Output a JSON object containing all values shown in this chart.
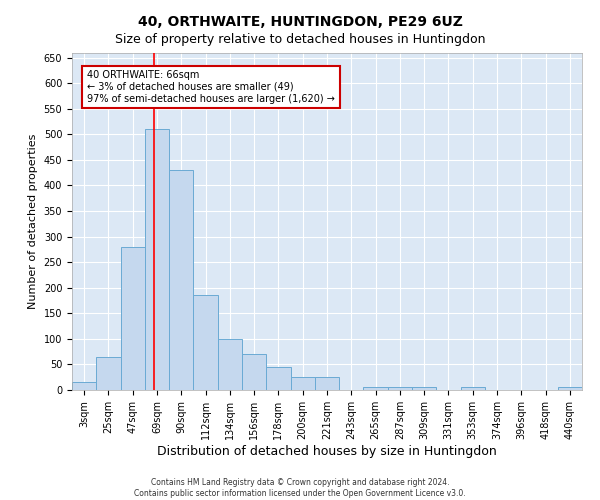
{
  "title": "40, ORTHWAITE, HUNTINGDON, PE29 6UZ",
  "subtitle": "Size of property relative to detached houses in Huntingdon",
  "xlabel": "Distribution of detached houses by size in Huntingdon",
  "ylabel": "Number of detached properties",
  "categories": [
    "3sqm",
    "25sqm",
    "47sqm",
    "69sqm",
    "90sqm",
    "112sqm",
    "134sqm",
    "156sqm",
    "178sqm",
    "200sqm",
    "221sqm",
    "243sqm",
    "265sqm",
    "287sqm",
    "309sqm",
    "331sqm",
    "353sqm",
    "374sqm",
    "396sqm",
    "418sqm",
    "440sqm"
  ],
  "values": [
    15,
    65,
    280,
    510,
    430,
    185,
    100,
    70,
    45,
    25,
    25,
    0,
    5,
    5,
    5,
    0,
    5,
    0,
    0,
    0,
    5
  ],
  "bar_color": "#c5d8ee",
  "bar_edge_color": "#6aaad4",
  "redline_x": 2.88,
  "annotation_line1": "40 ORTHWAITE: 66sqm",
  "annotation_line2": "← 3% of detached houses are smaller (49)",
  "annotation_line3": "97% of semi-detached houses are larger (1,620) →",
  "annotation_box_color": "#ffffff",
  "annotation_box_edge": "#cc0000",
  "ylim": [
    0,
    660
  ],
  "yticks": [
    0,
    50,
    100,
    150,
    200,
    250,
    300,
    350,
    400,
    450,
    500,
    550,
    600,
    650
  ],
  "background_color": "#dce8f5",
  "grid_color": "#ffffff",
  "footer1": "Contains HM Land Registry data © Crown copyright and database right 2024.",
  "footer2": "Contains public sector information licensed under the Open Government Licence v3.0.",
  "title_fontsize": 10,
  "subtitle_fontsize": 9,
  "tick_fontsize": 7,
  "ylabel_fontsize": 8,
  "xlabel_fontsize": 9
}
